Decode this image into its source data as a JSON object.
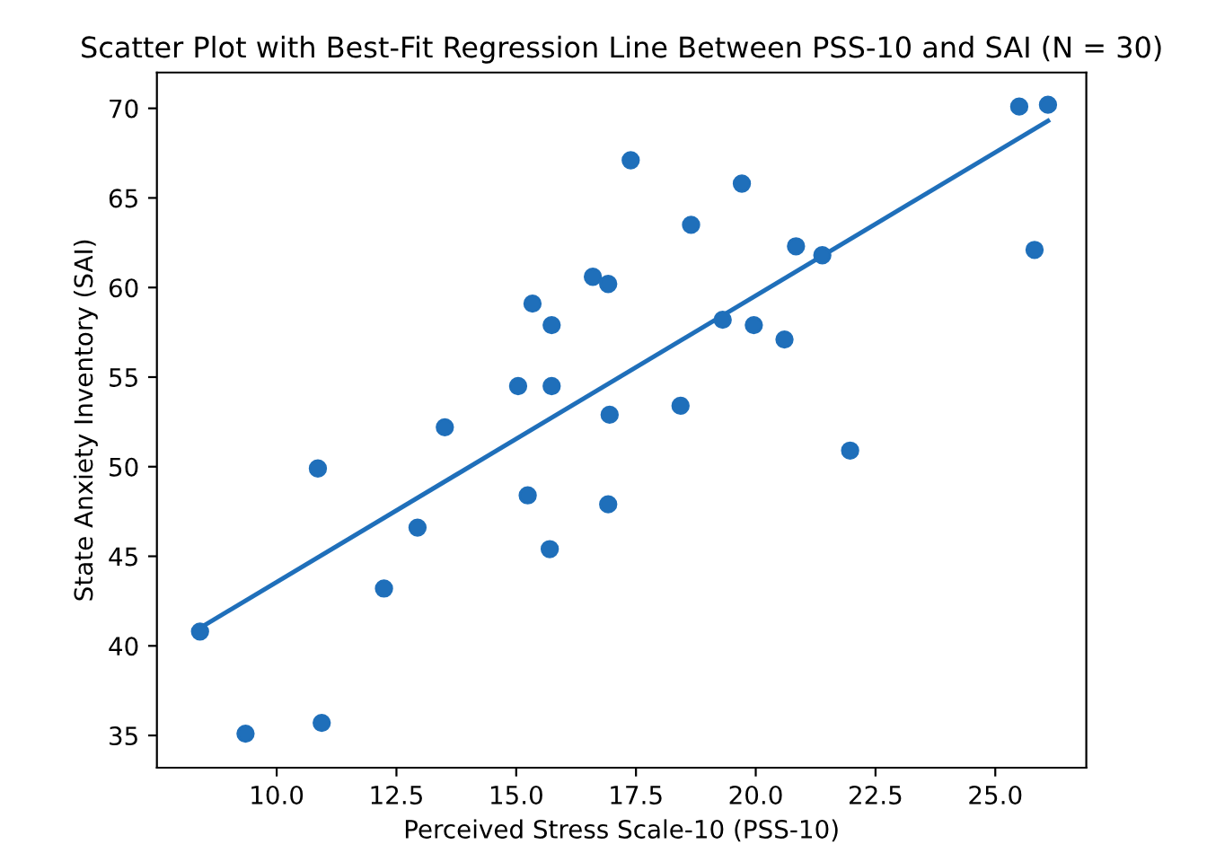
{
  "chart_data": {
    "type": "scatter",
    "title": "Scatter Plot with Best-Fit Regression Line Between PSS-10 and SAI (N = 30)",
    "xlabel": "Perceived Stress Scale-10 (PSS-10)",
    "ylabel": "State Anxiety Inventory (SAI)",
    "xlim": [
      7.5,
      26.9
    ],
    "ylim": [
      33.2,
      72
    ],
    "xticks": [
      {
        "value": 10,
        "label": "10.0"
      },
      {
        "value": 12.5,
        "label": "12.5"
      },
      {
        "value": 15,
        "label": "15.0"
      },
      {
        "value": 17.5,
        "label": "17.5"
      },
      {
        "value": 20,
        "label": "20.0"
      },
      {
        "value": 22.5,
        "label": "22.5"
      },
      {
        "value": 25,
        "label": "25.0"
      }
    ],
    "yticks": [
      35,
      40,
      45,
      50,
      55,
      60,
      65,
      70
    ],
    "grid": false,
    "series": [
      {
        "marker": "circle",
        "color": "#1f6fba",
        "x": [
          8.4,
          9.35,
          10.94,
          10.86,
          12.24,
          12.94,
          13.51,
          15.04,
          15.24,
          15.34,
          15.74,
          15.74,
          15.7,
          16.6,
          16.92,
          16.95,
          16.92,
          17.39,
          18.43,
          18.65,
          19.31,
          19.71,
          19.96,
          20.6,
          20.84,
          21.39,
          21.97,
          25.5,
          26.1,
          25.82
        ],
        "values": [
          40.8,
          35.1,
          35.7,
          49.9,
          43.2,
          46.6,
          52.2,
          54.5,
          48.4,
          59.1,
          57.9,
          54.5,
          45.4,
          60.6,
          60.2,
          52.9,
          47.9,
          67.1,
          53.4,
          63.5,
          58.2,
          65.8,
          57.9,
          57.1,
          62.3,
          61.8,
          50.9,
          70.1,
          70.2,
          62.1
        ]
      },
      {
        "type": "line",
        "marker": "none",
        "color": "#1f6fba",
        "line_style": "solid",
        "x": [
          8.4,
          26.1
        ],
        "values": [
          41.0,
          69.3
        ]
      }
    ]
  }
}
